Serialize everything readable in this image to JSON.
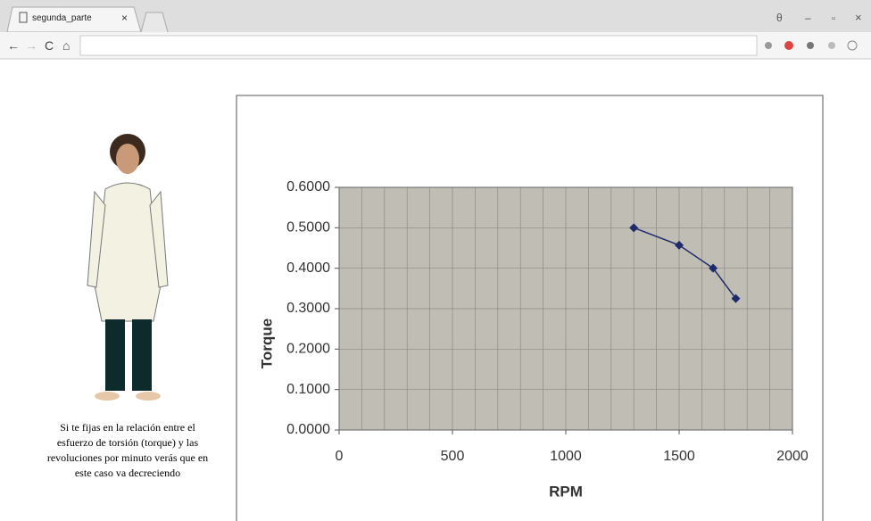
{
  "browser": {
    "tab_title": "segunda_parte"
  },
  "caption": [
    "Si te fijas en la relación entre el",
    "esfuerzo de torsión (torque) y las",
    "revoluciones por minuto verás que en",
    "este caso va decreciendo"
  ],
  "chart_data": {
    "type": "line",
    "xlabel": "RPM",
    "ylabel": "Torque",
    "x": [
      1300,
      1500,
      1650,
      1750
    ],
    "series": [
      {
        "name": "Torque",
        "color": "#1f2a6b",
        "values": [
          0.5,
          0.457,
          0.4,
          0.325
        ]
      }
    ],
    "xlim": [
      0,
      2000
    ],
    "xticks": [
      0,
      500,
      1000,
      1500,
      2000
    ],
    "xgrid": [
      100,
      200,
      300,
      400,
      600,
      700,
      800,
      900,
      1100,
      1200,
      1300,
      1400,
      1600,
      1700,
      1800,
      1900
    ],
    "ylim": [
      0,
      0.6
    ],
    "yticks": [
      {
        "value": 0,
        "label": "0.0000"
      },
      {
        "value": 0.1,
        "label": "0.1000"
      },
      {
        "value": 0.2,
        "label": "0.2000"
      },
      {
        "value": 0.3,
        "label": "0.3000"
      },
      {
        "value": 0.4,
        "label": "0.4000"
      },
      {
        "value": 0.5,
        "label": "0.5000"
      },
      {
        "value": 0.6,
        "label": "0.6000"
      }
    ],
    "grid": true,
    "plot_background": "#c0bdb5"
  }
}
